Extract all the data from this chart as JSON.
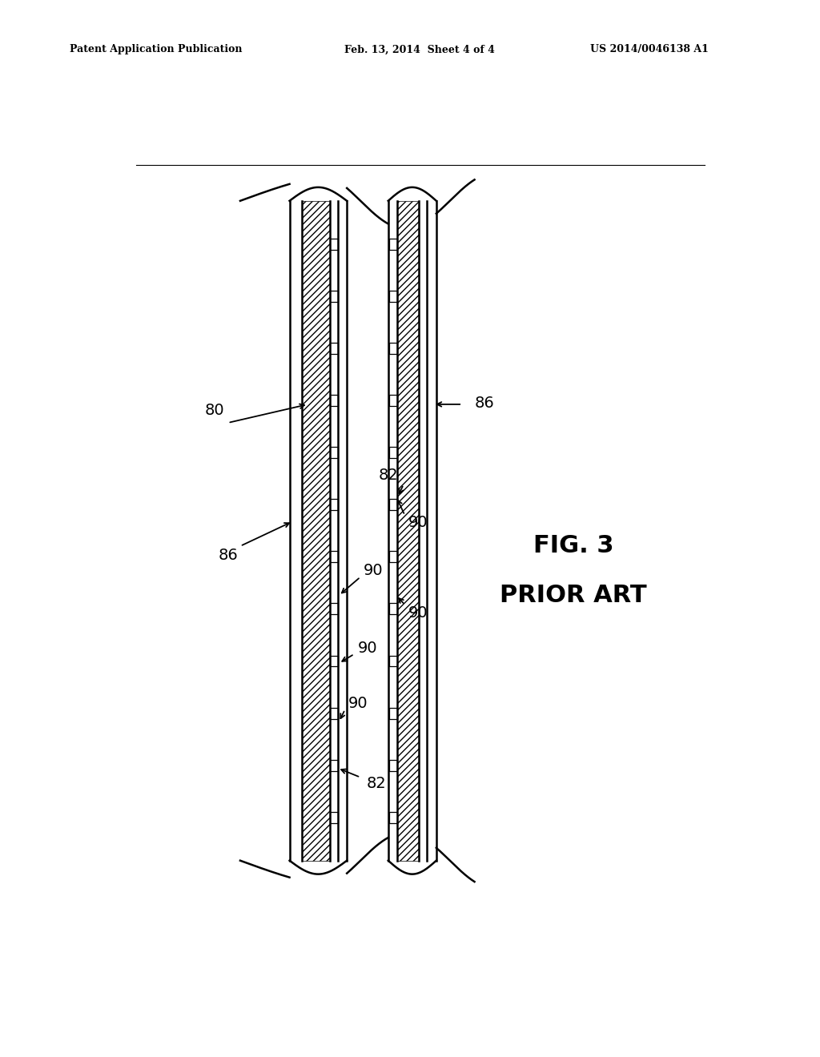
{
  "bg_color": "#ffffff",
  "header_left": "Patent Application Publication",
  "header_mid": "Feb. 13, 2014  Sheet 4 of 4",
  "header_right": "US 2014/0046138 A1",
  "fig_label": "FIG. 3",
  "fig_sublabel": "PRIOR ART",
  "label_80": "80",
  "label_82": "82",
  "label_86": "86",
  "label_90": "90",
  "line_color": "#000000"
}
